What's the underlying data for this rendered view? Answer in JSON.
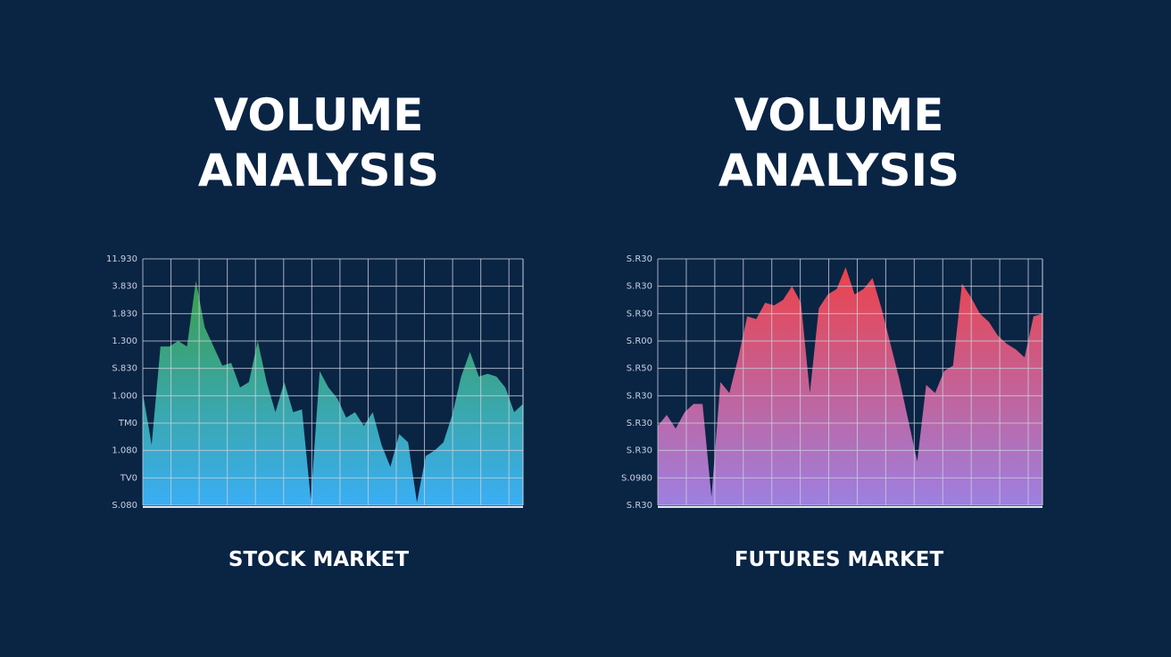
{
  "chart_data": [
    {
      "type": "area",
      "title": "VOLUME ANALYSIS",
      "label": "STOCK MARKET",
      "gradient": [
        "#3a9e4a",
        "#3aaef5"
      ],
      "ylim": [
        0,
        9
      ],
      "yticks": [
        {
          "value": 0,
          "label": "S.080"
        },
        {
          "value": 1,
          "label": "TV0"
        },
        {
          "value": 2,
          "label": "1.080"
        },
        {
          "value": 3,
          "label": "TM0"
        },
        {
          "value": 4,
          "label": "1.000"
        },
        {
          "value": 5,
          "label": "S.830"
        },
        {
          "value": 6,
          "label": "1.300"
        },
        {
          "value": 7,
          "label": "1.830"
        },
        {
          "value": 8,
          "label": "3.830"
        },
        {
          "value": 9,
          "label": "11.930"
        }
      ],
      "grid": true,
      "values": [
        4.1,
        2.2,
        5.8,
        5.8,
        6.0,
        5.8,
        8.2,
        6.5,
        5.8,
        5.1,
        5.2,
        4.3,
        4.5,
        6.0,
        4.5,
        3.4,
        4.5,
        3.4,
        3.5,
        0.2,
        4.9,
        4.3,
        3.9,
        3.2,
        3.4,
        2.9,
        3.4,
        2.2,
        1.4,
        2.6,
        2.3,
        0.1,
        1.8,
        2.0,
        2.3,
        3.3,
        4.7,
        5.6,
        4.7,
        4.8,
        4.7,
        4.3,
        3.4,
        3.7
      ]
    },
    {
      "type": "area",
      "title": "VOLUME ANALYSIS",
      "label": "FUTURES MARKET",
      "gradient": [
        "#ec4249",
        "#9d80e2"
      ],
      "ylim": [
        0,
        9
      ],
      "yticks": [
        {
          "value": 0,
          "label": "S.R30"
        },
        {
          "value": 1,
          "label": "S.0980"
        },
        {
          "value": 2,
          "label": "S.R30"
        },
        {
          "value": 3,
          "label": "S.R30"
        },
        {
          "value": 4,
          "label": "S.R30"
        },
        {
          "value": 5,
          "label": "S.R50"
        },
        {
          "value": 6,
          "label": "S.R00"
        },
        {
          "value": 7,
          "label": "S.R30"
        },
        {
          "value": 8,
          "label": "S.R30"
        },
        {
          "value": 9,
          "label": "S.R30"
        }
      ],
      "grid": true,
      "values": [
        2.9,
        3.3,
        2.8,
        3.4,
        3.7,
        3.7,
        0.3,
        4.5,
        4.1,
        5.4,
        6.9,
        6.8,
        7.4,
        7.3,
        7.5,
        8.0,
        7.4,
        4.1,
        7.2,
        7.7,
        7.9,
        8.7,
        7.7,
        7.9,
        8.3,
        7.2,
        5.9,
        4.6,
        3.1,
        1.6,
        4.4,
        4.1,
        4.9,
        5.1,
        8.1,
        7.6,
        7.0,
        6.7,
        6.2,
        5.9,
        5.7,
        5.4,
        6.9,
        7.0
      ]
    }
  ]
}
